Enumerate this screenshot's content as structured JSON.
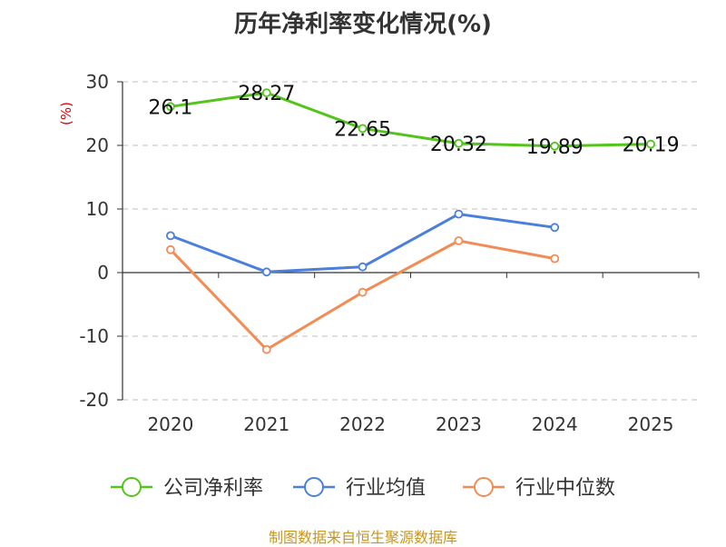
{
  "title": "历年净利率变化情况(%)",
  "source": "制图数据来自恒生聚源数据库",
  "chart_data": {
    "type": "line",
    "title": "历年净利率变化情况(%)",
    "ylabel": "(%)",
    "xlabel": "",
    "categories": [
      "2020",
      "2021",
      "2022",
      "2023",
      "2024",
      "2025"
    ],
    "ylim": [
      -20,
      30
    ],
    "yticks": [
      30,
      20,
      10,
      0,
      -10,
      -20
    ],
    "grid": true,
    "legend_position": "bottom",
    "series": [
      {
        "name": "公司净利率",
        "color": "#52c41a",
        "values": [
          26.1,
          28.27,
          22.65,
          20.32,
          19.89,
          20.19
        ],
        "labels": [
          "26.1",
          "28.27",
          "22.65",
          "20.32",
          "19.89",
          "20.19"
        ]
      },
      {
        "name": "行业均值",
        "color": "#4a7fdb",
        "values": [
          5.8,
          0.1,
          0.9,
          9.2,
          7.1,
          null
        ]
      },
      {
        "name": "行业中位数",
        "color": "#f28c55",
        "values": [
          3.6,
          -12.1,
          -3.1,
          5.0,
          2.2,
          null
        ]
      }
    ]
  }
}
